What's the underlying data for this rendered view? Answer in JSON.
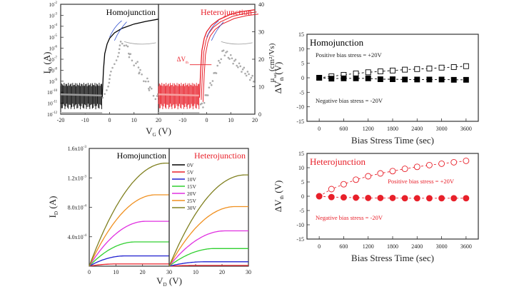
{
  "chart_data": [
    {
      "id": "transfer",
      "type": "line",
      "xlabel": "V_G (V)",
      "ylabel_left": "I_D (A)",
      "ylabel_right": "μ_sat (cm²/Vs)",
      "panels": [
        {
          "title": "Homojunction",
          "title_color": "#000000",
          "curve_color": "#000000",
          "noise_color": "#000000"
        },
        {
          "title": "Heterojunction",
          "title_color": "#e8202a",
          "curve_color": "#e8202a",
          "noise_color": "#e8202a",
          "annotation": "ΔV_th"
        }
      ],
      "x_ticks": [
        "-20",
        "-10",
        "0",
        "10",
        "20"
      ],
      "xlim": [
        -20,
        20
      ],
      "y_left_ticks": [
        "10^-12",
        "10^-11",
        "10^-10",
        "10^-9",
        "10^-8",
        "10^-7",
        "10^-6",
        "10^-5",
        "10^-4",
        "10^-3",
        "10^-2"
      ],
      "y_left_log_range": [
        -12,
        -2
      ],
      "y_right_ticks": [
        "0",
        "10",
        "20",
        "30",
        "40"
      ],
      "y_right_range": [
        0,
        40
      ],
      "homo_id_curve": [
        [
          -3,
          -10.5
        ],
        [
          -2.5,
          -8
        ],
        [
          -2,
          -6.5
        ],
        [
          -1,
          -5.6
        ],
        [
          0,
          -5.1
        ],
        [
          2,
          -4.6
        ],
        [
          5,
          -4.2
        ],
        [
          10,
          -3.8
        ],
        [
          15,
          -3.55
        ],
        [
          20,
          -3.35
        ]
      ],
      "hetero_id_curve": [
        [
          -3,
          -10.5
        ],
        [
          -2.5,
          -8
        ],
        [
          -2,
          -6.2
        ],
        [
          -1,
          -5.1
        ],
        [
          0,
          -4.5
        ],
        [
          2,
          -3.9
        ],
        [
          5,
          -3.4
        ],
        [
          10,
          -2.9
        ],
        [
          15,
          -2.65
        ],
        [
          20,
          -2.5
        ]
      ],
      "homo_mobility_peak": 23,
      "hetero_mobility_peak": 23
    },
    {
      "id": "output",
      "type": "line",
      "xlabel": "V_D (V)",
      "ylabel": "I_D (A)",
      "x_ticks": [
        "0",
        "10",
        "20",
        "30"
      ],
      "xlim": [
        0,
        30
      ],
      "y_ticks": [
        "4.0x10^-4",
        "8.0x10^-4",
        "1.2x10^-3",
        "1.6x10^-3"
      ],
      "ylim": [
        0,
        0.0016
      ],
      "legend": [
        "0V",
        "5V",
        "10V",
        "15V",
        "20V",
        "25V",
        "30V"
      ],
      "legend_colors": [
        "#000000",
        "#e8202a",
        "#2020d0",
        "#30d030",
        "#e030e0",
        "#f09020",
        "#808020"
      ],
      "panels": [
        {
          "title": "Homojunction",
          "title_color": "#000000",
          "sat_values": [
            0,
            3e-05,
            0.00014,
            0.00033,
            0.00061,
            0.00097,
            0.0014
          ]
        },
        {
          "title": "Heterojunction",
          "title_color": "#e8202a",
          "sat_values": [
            0,
            1e-05,
            6e-05,
            0.00024,
            0.00048,
            0.00081,
            0.00124
          ]
        }
      ]
    },
    {
      "id": "homo-bias",
      "type": "scatter",
      "title": "Homojunction",
      "title_color": "#000000",
      "xlabel": "Bias Stress Time (sec)",
      "ylabel": "ΔV_th (V)",
      "x_ticks": [
        "0",
        "600",
        "1200",
        "1800",
        "2400",
        "3000",
        "3600"
      ],
      "y_ticks": [
        "-15",
        "-10",
        "-5",
        "0",
        "5",
        "10",
        "15"
      ],
      "xlim": [
        -300,
        3900
      ],
      "ylim": [
        -15,
        15
      ],
      "annotations": [
        "Positive bias stress = +20V",
        "Negative bias stress = -20V"
      ],
      "series": [
        {
          "name": "Positive bias stress = +20V",
          "marker": "open-square",
          "color": "#000000",
          "x": [
            0,
            300,
            600,
            900,
            1200,
            1500,
            1800,
            2100,
            2400,
            2700,
            3000,
            3300,
            3600
          ],
          "y": [
            0,
            0.5,
            1.0,
            1.5,
            1.9,
            2.2,
            2.5,
            2.8,
            3.0,
            3.2,
            3.5,
            3.7,
            4.0
          ]
        },
        {
          "name": "Negative bias stress = -20V",
          "marker": "filled-square",
          "color": "#000000",
          "x": [
            0,
            300,
            600,
            900,
            1200,
            1500,
            1800,
            2100,
            2400,
            2700,
            3000,
            3300,
            3600
          ],
          "y": [
            0,
            -0.3,
            -0.2,
            -0.2,
            -0.2,
            -0.5,
            -0.5,
            -0.6,
            -0.6,
            -0.6,
            -0.6,
            -0.7,
            -0.7
          ]
        }
      ]
    },
    {
      "id": "hetero-bias",
      "type": "scatter",
      "title": "Heterojunction",
      "title_color": "#e8202a",
      "xlabel": "Bias Stress Time (sec)",
      "ylabel": "ΔV_th (V)",
      "x_ticks": [
        "0",
        "600",
        "1200",
        "1800",
        "2400",
        "3000",
        "3600"
      ],
      "y_ticks": [
        "-15",
        "-10",
        "-5",
        "0",
        "5",
        "10",
        "15"
      ],
      "xlim": [
        -300,
        3900
      ],
      "ylim": [
        -15,
        15
      ],
      "annotations": [
        "Positive bias stress = +20V",
        "Negative bias stress = -20V"
      ],
      "series": [
        {
          "name": "Positive bias stress = +20V",
          "marker": "open-circle",
          "color": "#e8202a",
          "x": [
            0,
            300,
            600,
            900,
            1200,
            1500,
            1800,
            2100,
            2400,
            2700,
            3000,
            3300,
            3600
          ],
          "y": [
            0,
            2.5,
            4.2,
            5.8,
            7.0,
            8.0,
            8.8,
            9.6,
            10.3,
            10.9,
            11.4,
            11.9,
            12.4
          ]
        },
        {
          "name": "Negative bias stress = -20V",
          "marker": "filled-circle",
          "color": "#e8202a",
          "x": [
            0,
            300,
            600,
            900,
            1200,
            1500,
            1800,
            2100,
            2400,
            2700,
            3000,
            3300,
            3600
          ],
          "y": [
            0,
            -0.3,
            -0.4,
            -0.5,
            -0.6,
            -0.6,
            -0.6,
            -0.7,
            -0.7,
            -0.7,
            -0.7,
            -0.7,
            -0.7
          ]
        }
      ]
    }
  ]
}
